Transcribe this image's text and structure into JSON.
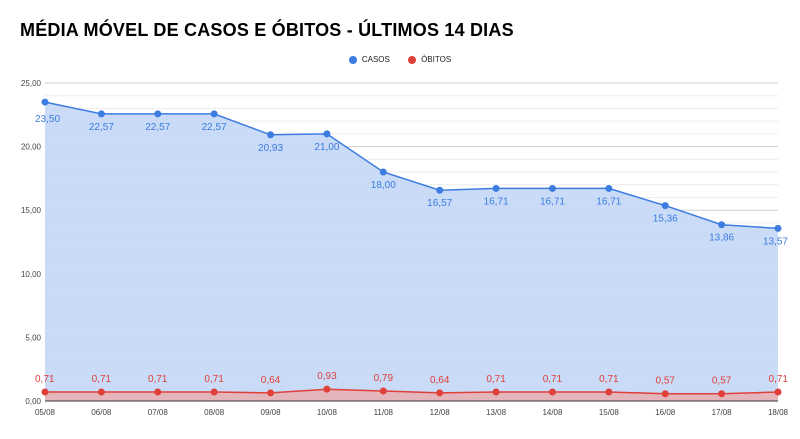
{
  "chart_data": {
    "type": "area",
    "title": "MÉDIA MÓVEL DE CASOS E ÓBITOS - ÚLTIMOS 14 DIAS",
    "categories": [
      "05/08",
      "06/08",
      "07/08",
      "08/08",
      "09/08",
      "10/08",
      "11/08",
      "12/08",
      "13/08",
      "14/08",
      "15/08",
      "16/08",
      "17/08",
      "18/08"
    ],
    "series": [
      {
        "name": "CASOS",
        "color": "#3d7ce0",
        "fill": "#c6d9f7",
        "values": [
          23.5,
          22.57,
          22.57,
          22.57,
          20.93,
          21.0,
          18.0,
          16.57,
          16.71,
          16.71,
          16.71,
          15.36,
          13.86,
          13.57
        ],
        "labels": [
          "23,50",
          "22,57",
          "22,57",
          "22,57",
          "20,93",
          "21,00",
          "18,00",
          "16,57",
          "16,71",
          "16,71",
          "16,71",
          "15,36",
          "13,86",
          "13,57"
        ]
      },
      {
        "name": "ÓBITOS",
        "color": "#e0403a",
        "fill": "#e6b4b8",
        "values": [
          0.71,
          0.71,
          0.71,
          0.71,
          0.64,
          0.93,
          0.79,
          0.64,
          0.71,
          0.71,
          0.71,
          0.57,
          0.57,
          0.71
        ],
        "labels": [
          "0,71",
          "0,71",
          "0,71",
          "0,71",
          "0,64",
          "0,93",
          "0,79",
          "0,64",
          "0,71",
          "0,71",
          "0,71",
          "0,57",
          "0,57",
          "0,71"
        ]
      }
    ],
    "ylim": [
      0,
      25
    ],
    "yticks": [
      "0,00",
      "5,00",
      "10,00",
      "15,00",
      "20,00",
      "25,00"
    ],
    "grid": true,
    "legend_position": "top-center"
  }
}
